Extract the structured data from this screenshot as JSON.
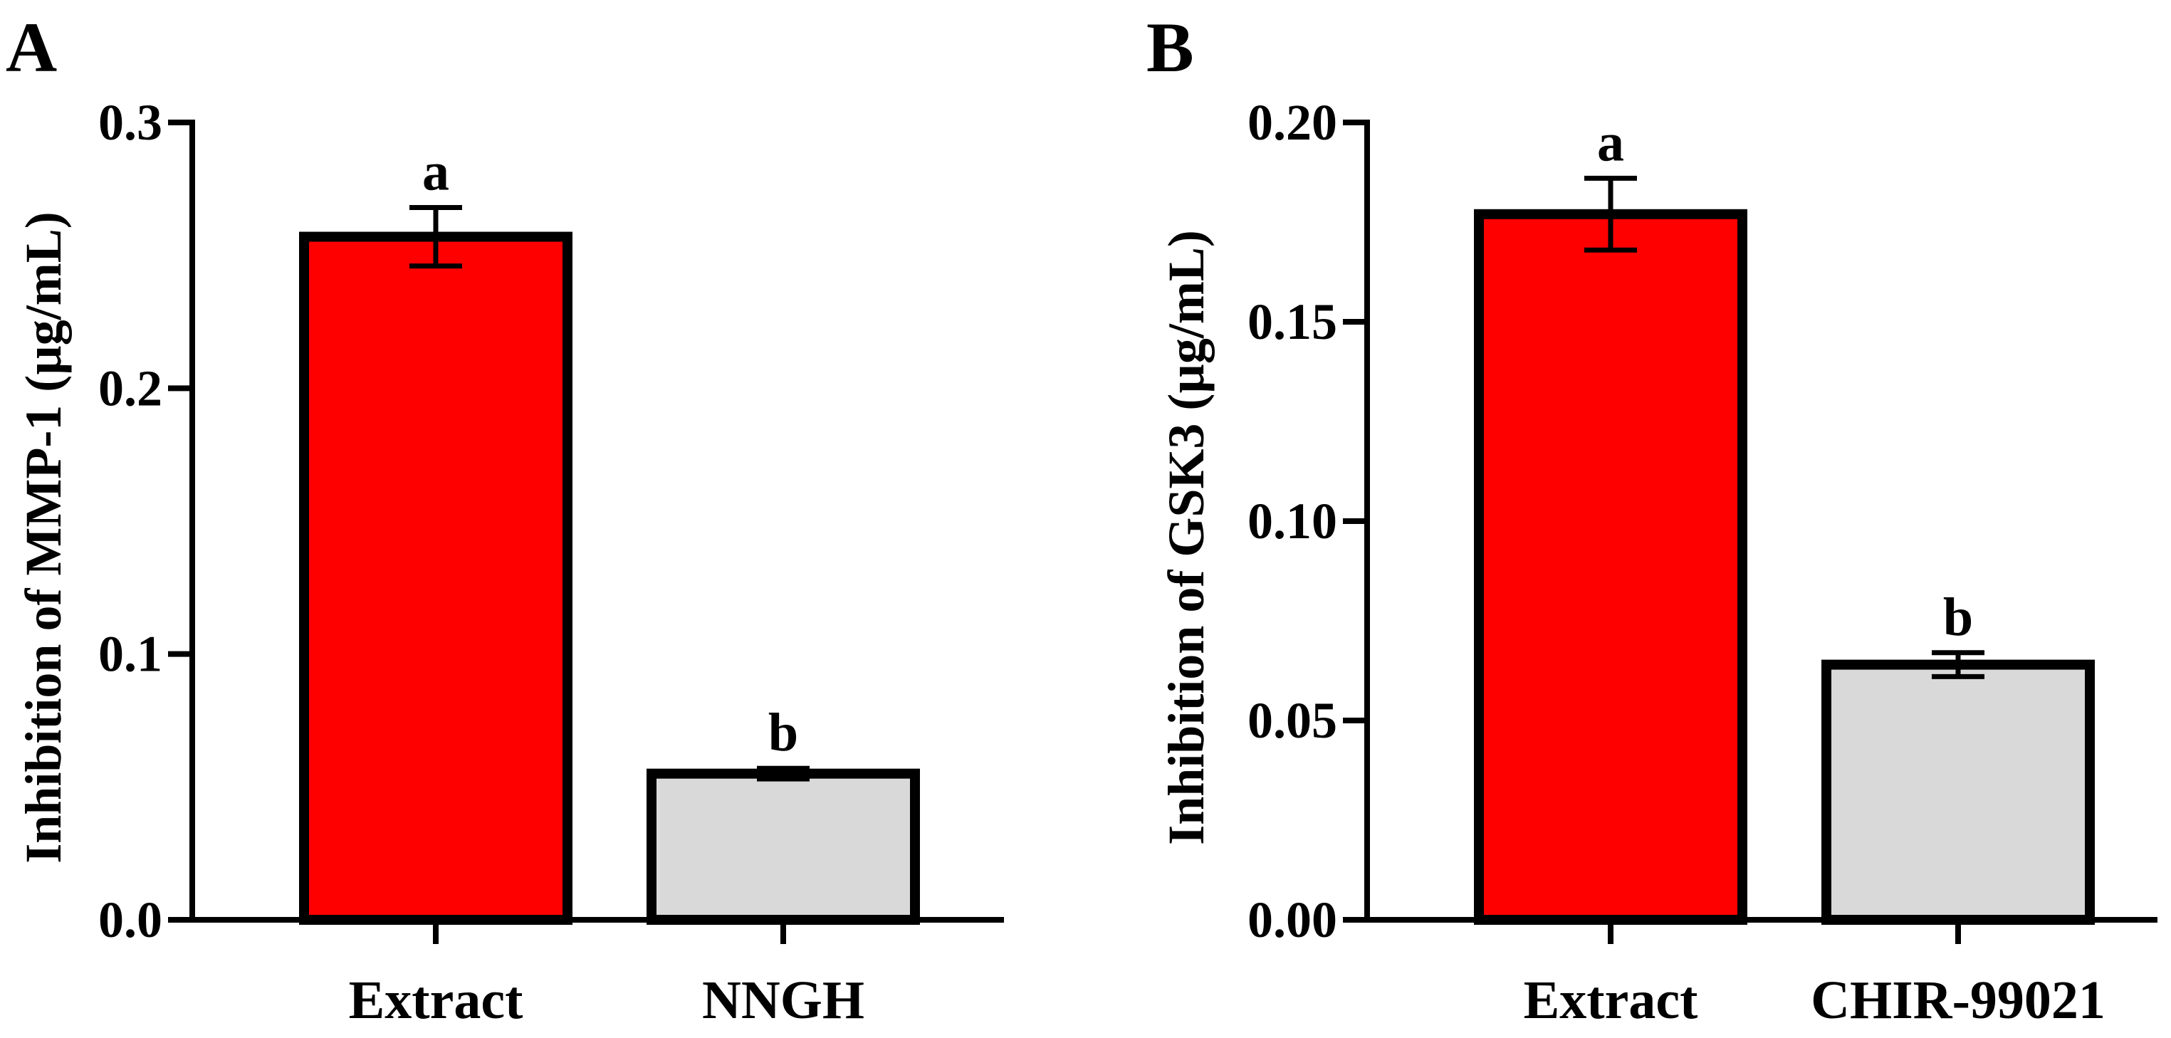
{
  "colors": {
    "extract_bar": "#ff0000",
    "control_bar": "#d9d9d9",
    "axis": "#000000"
  },
  "chart_data": [
    {
      "panel_label": "A",
      "type": "bar",
      "categories": [
        "Extract",
        "NNGH"
      ],
      "values": [
        0.257,
        0.055
      ],
      "errors": [
        0.011,
        0.002
      ],
      "significance": [
        "a",
        "b"
      ],
      "bar_colors": [
        "#ff0000",
        "#d9d9d9"
      ],
      "title": "",
      "xlabel": "",
      "ylabel": "Inhibition of MMP-1 (µg/mL)",
      "ylim": [
        0,
        0.3
      ],
      "yticks": [
        0.0,
        0.1,
        0.2,
        0.3
      ],
      "ytick_labels": [
        "0.0",
        "0.1",
        "0.2",
        "0.3"
      ],
      "grid": false
    },
    {
      "panel_label": "B",
      "type": "bar",
      "categories": [
        "Extract",
        "CHIR-99021"
      ],
      "values": [
        0.177,
        0.064
      ],
      "errors": [
        0.009,
        0.003
      ],
      "significance": [
        "a",
        "b"
      ],
      "bar_colors": [
        "#ff0000",
        "#d9d9d9"
      ],
      "title": "",
      "xlabel": "",
      "ylabel": "Inhibition of GSK3 (µg/mL)",
      "ylim": [
        0,
        0.2
      ],
      "yticks": [
        0.0,
        0.05,
        0.1,
        0.15,
        0.2
      ],
      "ytick_labels": [
        "0.00",
        "0.05",
        "0.10",
        "0.15",
        "0.20"
      ],
      "grid": false
    }
  ]
}
